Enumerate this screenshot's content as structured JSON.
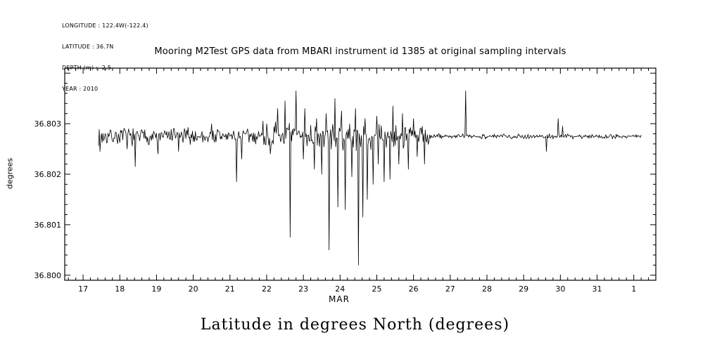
{
  "header": {
    "meta_lines": [
      "LONGITUDE : 122.4W(-122.4)",
      "LATITUDE : 36.7N",
      "DEPTH (m) : -2.5",
      "YEAR : 2010"
    ]
  },
  "chart_data": {
    "type": "line",
    "title": "Mooring M2Test GPS data from MBARI instrument id 1385 at original sampling intervals",
    "xlabel": "MAR",
    "ylabel": "degrees",
    "caption": "Latitude in degrees North (degrees)",
    "grid": false,
    "legend": "none",
    "xlim": [
      16.5,
      32.6
    ],
    "ylim": [
      36.7999,
      36.8041
    ],
    "x_major_ticks": [
      {
        "value": 17,
        "label": "17"
      },
      {
        "value": 18,
        "label": "18"
      },
      {
        "value": 19,
        "label": "19"
      },
      {
        "value": 20,
        "label": "20"
      },
      {
        "value": 21,
        "label": "21"
      },
      {
        "value": 22,
        "label": "22"
      },
      {
        "value": 23,
        "label": "23"
      },
      {
        "value": 24,
        "label": "24"
      },
      {
        "value": 25,
        "label": "25"
      },
      {
        "value": 26,
        "label": "26"
      },
      {
        "value": 27,
        "label": "27"
      },
      {
        "value": 28,
        "label": "28"
      },
      {
        "value": 29,
        "label": "29"
      },
      {
        "value": 30,
        "label": "30"
      },
      {
        "value": 31,
        "label": "31"
      },
      {
        "value": 32,
        "label": "1"
      }
    ],
    "x_minor_step": 0.2,
    "y_major_ticks": [
      {
        "value": 36.8,
        "label": "36.800"
      },
      {
        "value": 36.801,
        "label": "36.801"
      },
      {
        "value": 36.802,
        "label": "36.802"
      },
      {
        "value": 36.803,
        "label": "36.803"
      }
    ],
    "y_major_step": 0.001,
    "y_minor_step": 0.0002,
    "line_color": "#000000",
    "series": {
      "name": "latitude",
      "x_start": 17.42,
      "x_end": 32.2,
      "dx": 0.02,
      "seed": 7,
      "baseline": 36.80275,
      "noise_segments": [
        {
          "from": 17.4,
          "to": 21.9,
          "amp": 0.0002
        },
        {
          "from": 21.9,
          "to": 26.45,
          "amp": 0.0003
        },
        {
          "from": 26.45,
          "to": 32.25,
          "amp": 6e-05
        }
      ],
      "spikes_down": [
        [
          17.46,
          36.80245
        ],
        [
          18.2,
          36.8025
        ],
        [
          18.42,
          36.80215
        ],
        [
          19.05,
          36.8024
        ],
        [
          19.6,
          36.80245
        ],
        [
          21.18,
          36.80185
        ],
        [
          21.32,
          36.8023
        ],
        [
          22.1,
          36.8024
        ],
        [
          22.65,
          36.80075
        ],
        [
          23.0,
          36.8023
        ],
        [
          23.3,
          36.8021
        ],
        [
          23.5,
          36.802
        ],
        [
          23.7,
          36.8005
        ],
        [
          23.95,
          36.80135
        ],
        [
          24.15,
          36.8013
        ],
        [
          24.33,
          36.80195
        ],
        [
          24.5,
          36.8002
        ],
        [
          24.63,
          36.80115
        ],
        [
          24.75,
          36.8015
        ],
        [
          24.9,
          36.8018
        ],
        [
          25.05,
          36.8022
        ],
        [
          25.2,
          36.80185
        ],
        [
          25.35,
          36.8019
        ],
        [
          25.6,
          36.8022
        ],
        [
          25.85,
          36.8021
        ],
        [
          26.1,
          36.80235
        ],
        [
          26.3,
          36.8022
        ],
        [
          29.62,
          36.80245
        ]
      ],
      "spikes_up": [
        [
          17.43,
          36.8029
        ],
        [
          20.5,
          36.803
        ],
        [
          21.9,
          36.80305
        ],
        [
          22.3,
          36.8033
        ],
        [
          22.5,
          36.80345
        ],
        [
          22.8,
          36.80365
        ],
        [
          23.05,
          36.8033
        ],
        [
          23.35,
          36.8031
        ],
        [
          23.62,
          36.8032
        ],
        [
          23.85,
          36.8035
        ],
        [
          24.05,
          36.80325
        ],
        [
          24.42,
          36.8033
        ],
        [
          24.68,
          36.8031
        ],
        [
          25.0,
          36.80315
        ],
        [
          25.45,
          36.80335
        ],
        [
          25.7,
          36.8032
        ],
        [
          26.0,
          36.8031
        ],
        [
          27.42,
          36.80365
        ],
        [
          29.95,
          36.8031
        ],
        [
          30.07,
          36.80295
        ]
      ]
    }
  }
}
